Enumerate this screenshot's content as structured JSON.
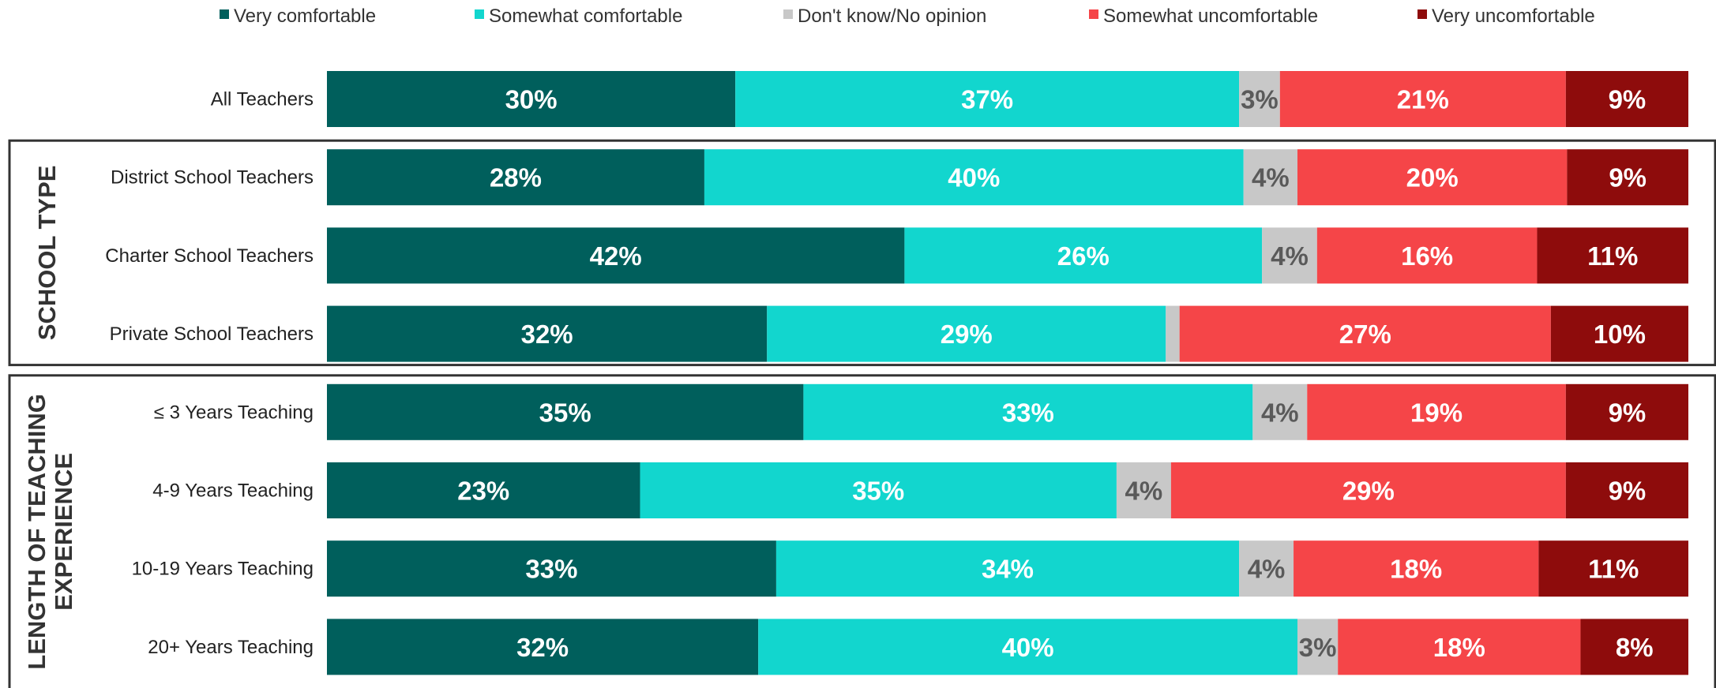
{
  "chart_data": {
    "type": "bar",
    "orientation": "horizontal",
    "stacked": true,
    "legend_position": "top",
    "categories": [
      "All Teachers",
      "District School Teachers",
      "Charter School Teachers",
      "Private School Teachers",
      "≤ 3 Years Teaching",
      "4-9 Years Teaching",
      "10-19 Years Teaching",
      "20+ Years Teaching"
    ],
    "series": [
      {
        "name": "Very comfortable",
        "color": "#005f5c",
        "label_color": "#ffffff",
        "values": [
          30,
          28,
          42,
          32,
          35,
          23,
          33,
          32
        ],
        "labels": [
          "30%",
          "28%",
          "42%",
          "32%",
          "35%",
          "23%",
          "33%",
          "32%"
        ]
      },
      {
        "name": "Somewhat comfortable",
        "color": "#12d6ce",
        "label_color": "#ffffff",
        "values": [
          37,
          40,
          26,
          29,
          33,
          35,
          34,
          40
        ],
        "labels": [
          "37%",
          "40%",
          "26%",
          "29%",
          "33%",
          "35%",
          "34%",
          "40%"
        ]
      },
      {
        "name": "Don't know/No opinion",
        "color": "#c8c8c8",
        "label_color": "#5a5a5a",
        "values": [
          3,
          4,
          4,
          1,
          4,
          4,
          4,
          3
        ],
        "labels": [
          "3%",
          "4%",
          "4%",
          "",
          "4%",
          "4%",
          "4%",
          "3%"
        ]
      },
      {
        "name": "Somewhat uncomfortable",
        "color": "#f54548",
        "label_color": "#ffffff",
        "values": [
          21,
          20,
          16,
          27,
          19,
          29,
          18,
          18
        ],
        "labels": [
          "21%",
          "20%",
          "16%",
          "27%",
          "19%",
          "29%",
          "18%",
          "18%"
        ]
      },
      {
        "name": "Very uncomfortable",
        "color": "#8e0c0c",
        "label_color": "#ffffff",
        "values": [
          9,
          9,
          11,
          10,
          9,
          9,
          11,
          8
        ],
        "labels": [
          "9%",
          "9%",
          "11%",
          "10%",
          "9%",
          "9%",
          "11%",
          "8%"
        ]
      }
    ],
    "groups": [
      {
        "label": "SCHOOL TYPE",
        "first": 1,
        "last": 3
      },
      {
        "label_lines": [
          "LENGTH OF TEACHING",
          "EXPERIENCE"
        ],
        "first": 4,
        "last": 7
      }
    ]
  }
}
